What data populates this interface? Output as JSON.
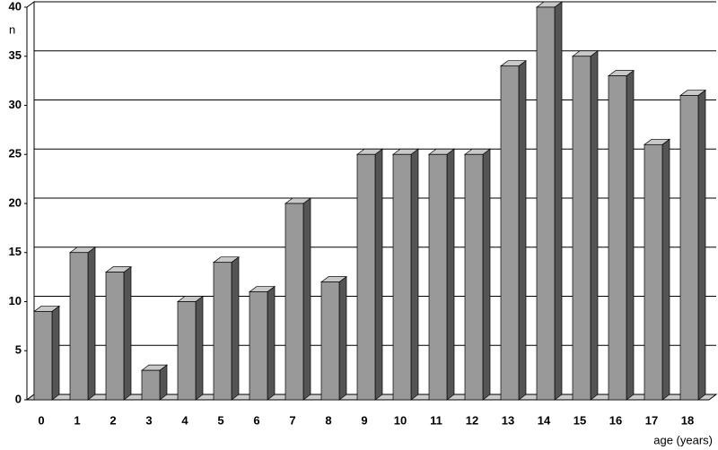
{
  "chart_data": {
    "type": "bar3d",
    "y_label": "n",
    "x_label": "age (years)",
    "categories": [
      "0",
      "1",
      "2",
      "3",
      "4",
      "5",
      "6",
      "7",
      "8",
      "9",
      "10",
      "11",
      "12",
      "13",
      "14",
      "15",
      "16",
      "17",
      "18"
    ],
    "values": [
      9,
      15,
      13,
      3,
      10,
      14,
      11,
      20,
      12,
      25,
      25,
      25,
      25,
      34,
      40,
      35,
      33,
      26,
      31
    ],
    "color": "#999999",
    "ylim": [
      0,
      40
    ],
    "yticks": [
      0,
      5,
      10,
      15,
      20,
      25,
      30,
      35,
      40
    ],
    "grid": true
  }
}
